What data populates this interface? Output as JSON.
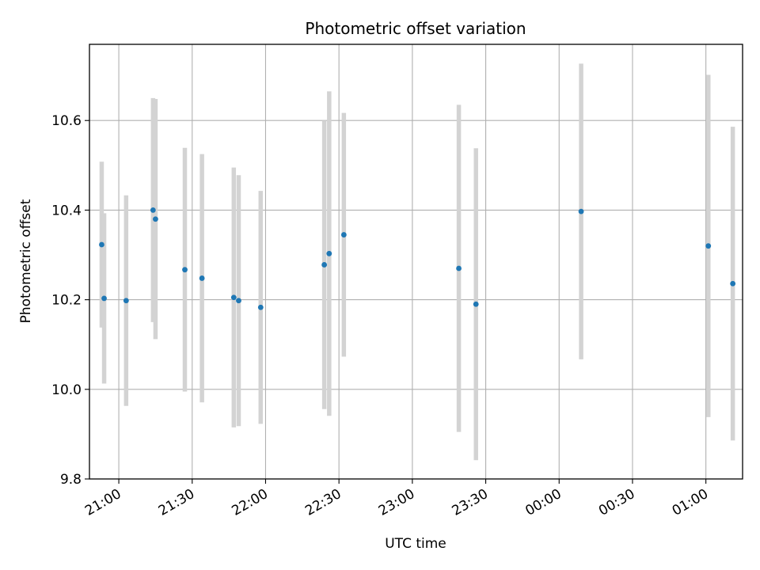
{
  "chart_data": {
    "type": "scatter",
    "title": "Photometric offset variation",
    "xlabel": "UTC time",
    "ylabel": "Photometric offset",
    "x_ticks": [
      "21:00",
      "21:30",
      "22:00",
      "22:30",
      "23:00",
      "23:30",
      "00:00",
      "00:30",
      "01:00"
    ],
    "y_ticks": [
      "9.8",
      "10.0",
      "10.2",
      "10.4",
      "10.6"
    ],
    "xlim": [
      "20:48",
      "01:15"
    ],
    "ylim": [
      9.8,
      10.77
    ],
    "grid": true,
    "series": [
      {
        "marker_color": "#1f77b4",
        "errorbar_color": "#d3d3d3",
        "points": [
          {
            "x": "20:53",
            "y": 10.323,
            "yerr": 0.185
          },
          {
            "x": "20:54",
            "y": 10.203,
            "yerr": 0.19
          },
          {
            "x": "21:03",
            "y": 10.198,
            "yerr": 0.235
          },
          {
            "x": "21:14",
            "y": 10.4,
            "yerr": 0.25
          },
          {
            "x": "21:15",
            "y": 10.38,
            "yerr": 0.268
          },
          {
            "x": "21:27",
            "y": 10.267,
            "yerr": 0.272
          },
          {
            "x": "21:34",
            "y": 10.248,
            "yerr": 0.277
          },
          {
            "x": "21:47",
            "y": 10.205,
            "yerr": 0.29
          },
          {
            "x": "21:49",
            "y": 10.198,
            "yerr": 0.28
          },
          {
            "x": "21:58",
            "y": 10.183,
            "yerr": 0.26
          },
          {
            "x": "22:24",
            "y": 10.278,
            "yerr": 0.322
          },
          {
            "x": "22:26",
            "y": 10.303,
            "yerr": 0.362
          },
          {
            "x": "22:32",
            "y": 10.345,
            "yerr": 0.272
          },
          {
            "x": "23:19",
            "y": 10.27,
            "yerr": 0.365
          },
          {
            "x": "23:26",
            "y": 10.19,
            "yerr": 0.348
          },
          {
            "x": "00:09",
            "y": 10.397,
            "yerr": 0.33
          },
          {
            "x": "01:01",
            "y": 10.32,
            "yerr": 0.382
          },
          {
            "x": "01:11",
            "y": 10.236,
            "yerr": 0.35
          }
        ]
      }
    ]
  }
}
